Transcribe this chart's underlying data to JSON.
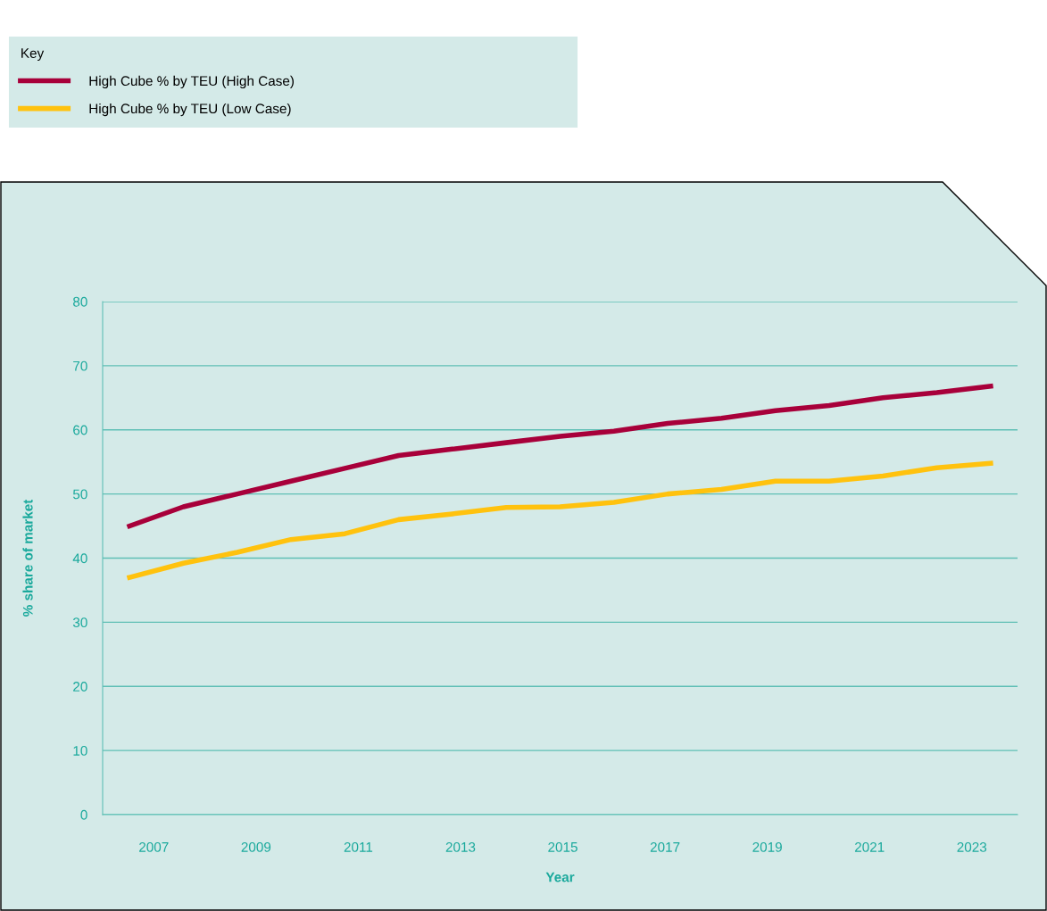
{
  "chart_data": {
    "type": "line",
    "x": [
      2007,
      2008,
      2009,
      2010,
      2011,
      2012,
      2013,
      2014,
      2015,
      2016,
      2017,
      2018,
      2019,
      2020,
      2021,
      2022,
      2023
    ],
    "series": [
      {
        "name": "High Cube % by TEU (High Case)",
        "color": "#a8003a",
        "values": [
          45,
          48,
          50,
          52,
          54,
          56,
          57,
          58,
          59,
          59.8,
          61,
          61.8,
          63,
          63.8,
          65,
          65.8,
          66.8
        ]
      },
      {
        "name": "High Cube % by TEU (Low Case)",
        "color": "#ffc20e",
        "values": [
          37,
          39.2,
          40.9,
          42.9,
          43.8,
          46,
          46.9,
          47.9,
          48,
          48.7,
          50,
          50.7,
          52,
          52,
          52.8,
          54.1,
          54.8
        ]
      }
    ],
    "xlabel": "Year",
    "ylabel": "% share of market",
    "legend_title": "Key",
    "xlim": [
      2006.5,
      2023.5
    ],
    "xticks": [
      {
        "value": 2007.45,
        "label": "2007"
      },
      {
        "value": 2009.35,
        "label": "2009"
      },
      {
        "value": 2011.25,
        "label": "2011"
      },
      {
        "value": 2013.15,
        "label": "2013"
      },
      {
        "value": 2015.05,
        "label": "2015"
      },
      {
        "value": 2016.95,
        "label": "2017"
      },
      {
        "value": 2018.85,
        "label": "2019"
      },
      {
        "value": 2020.75,
        "label": "2021"
      },
      {
        "value": 2022.65,
        "label": "2023"
      }
    ],
    "ylim": [
      0,
      80
    ],
    "yticks": [
      0,
      10,
      20,
      30,
      40,
      50,
      60,
      70,
      80
    ],
    "grid": "y",
    "legend": "top left",
    "marker": "none",
    "line_style": "solid"
  }
}
